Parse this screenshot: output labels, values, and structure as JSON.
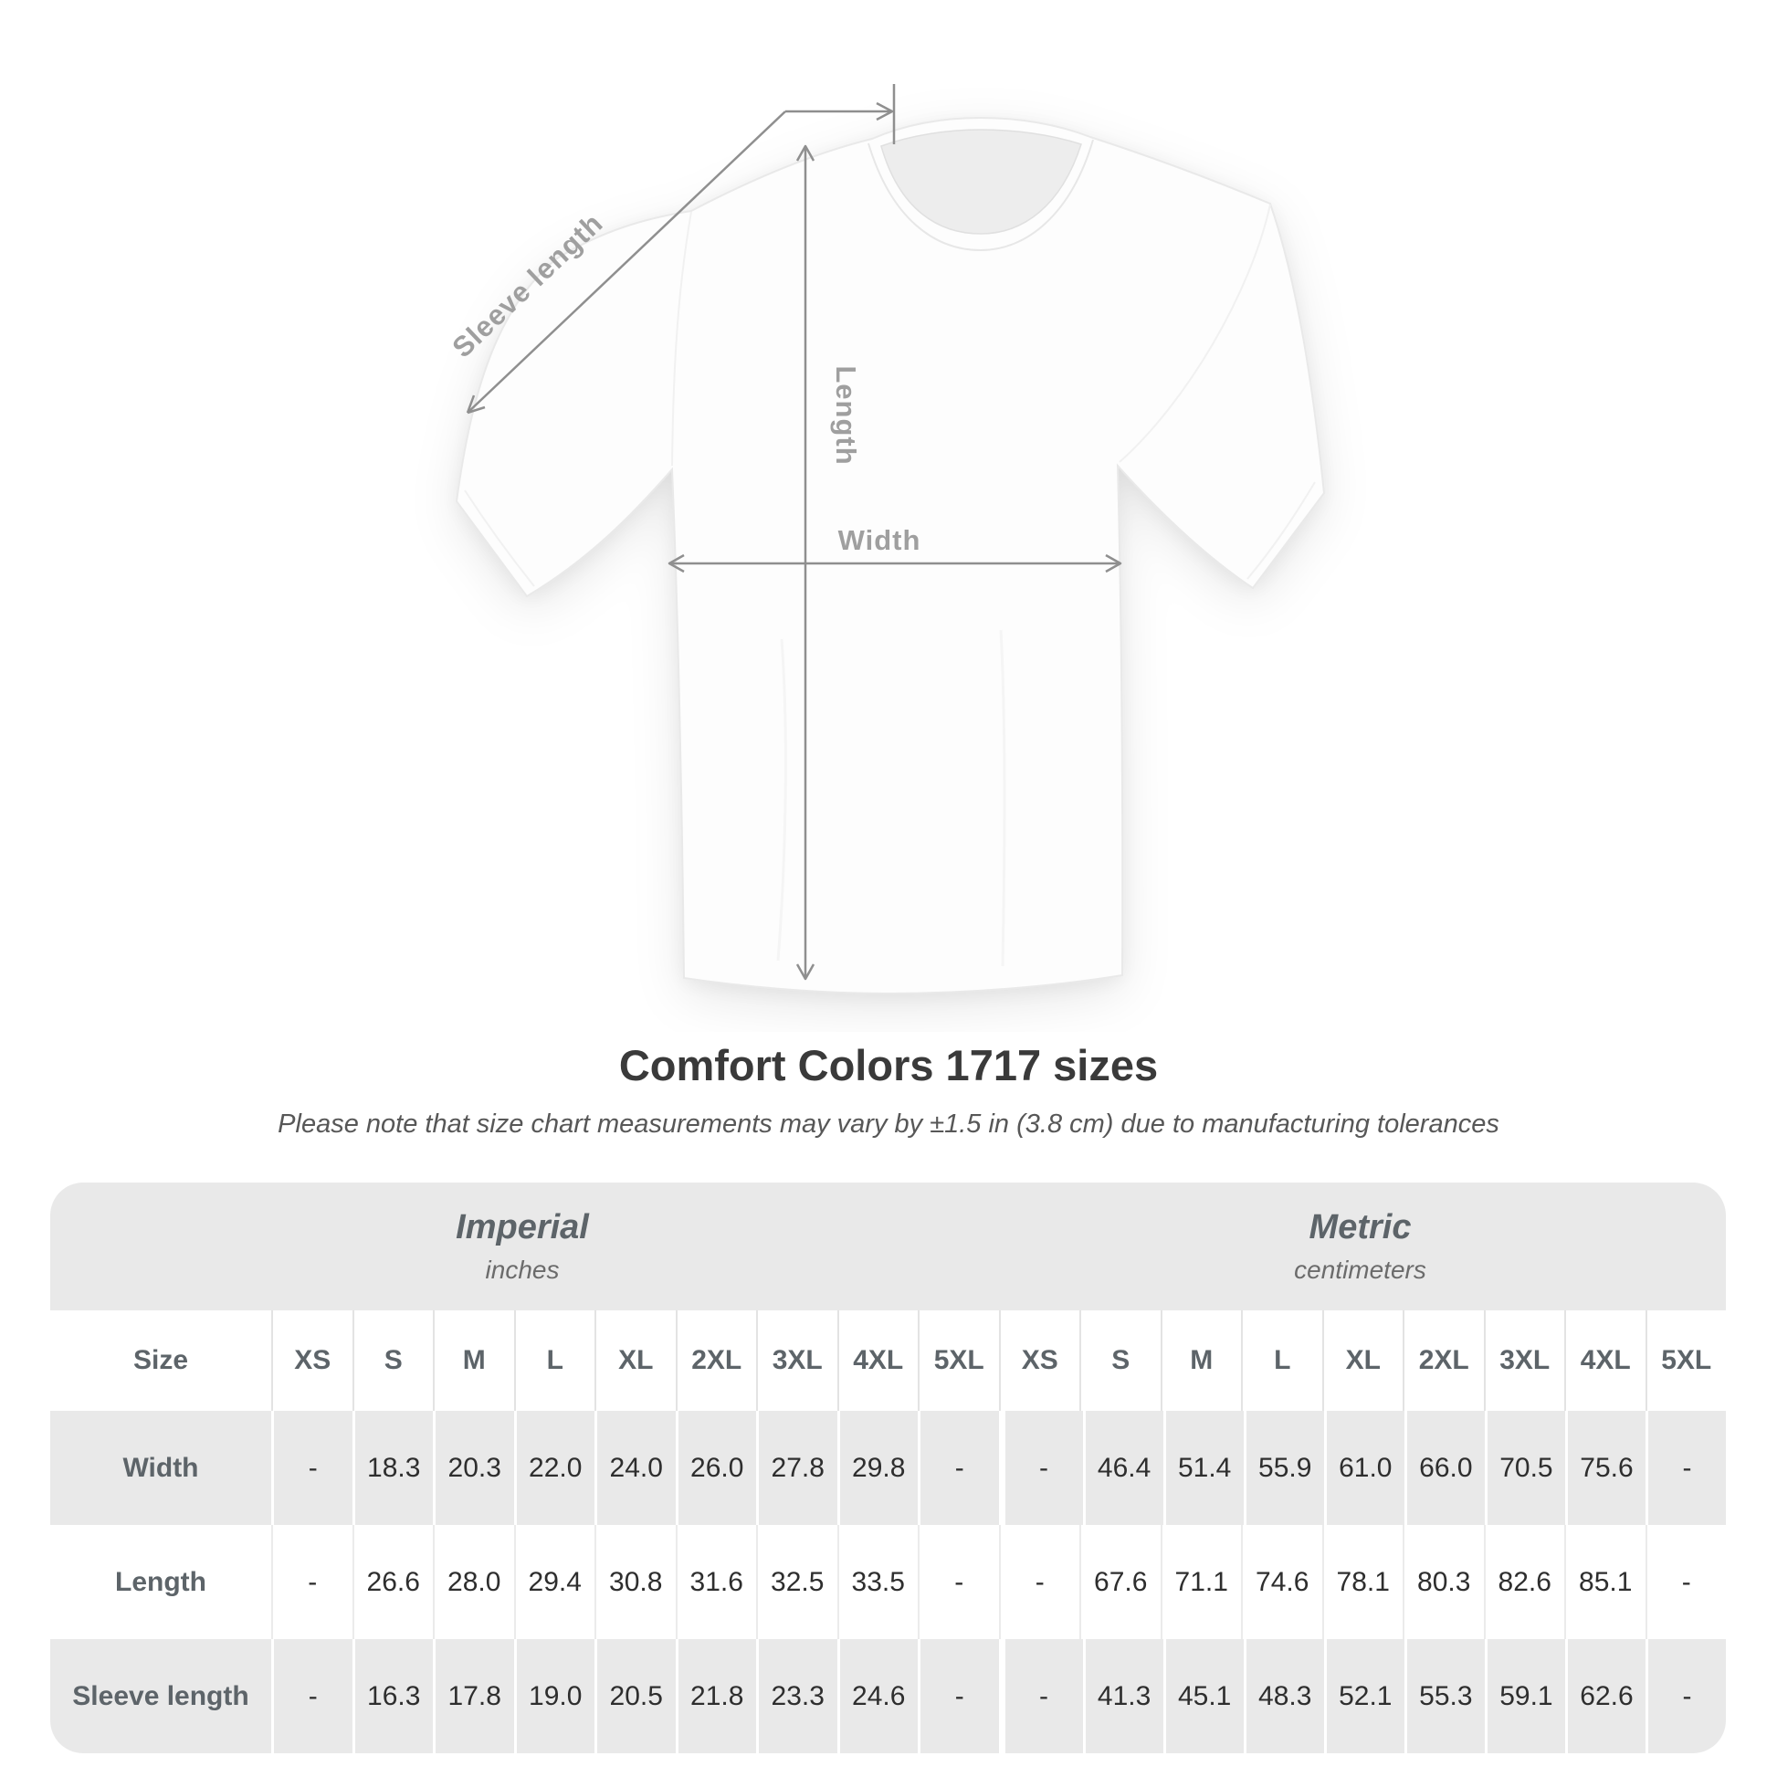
{
  "figure": {
    "sleeve_length_label": "Sleeve length",
    "length_label": "Length",
    "width_label": "Width"
  },
  "title": "Comfort Colors 1717 sizes",
  "subtitle": "Please note that size chart measurements may vary by ±1.5 in (3.8 cm) due to manufacturing tolerances",
  "chart_data": {
    "type": "table",
    "title": "Comfort Colors 1717 sizes",
    "corner_header": "Size",
    "sections": [
      {
        "label": "Imperial",
        "unit": "inches"
      },
      {
        "label": "Metric",
        "unit": "centimeters"
      }
    ],
    "sizes": [
      "XS",
      "S",
      "M",
      "L",
      "XL",
      "2XL",
      "3XL",
      "4XL",
      "5XL"
    ],
    "rows": [
      {
        "label": "Width",
        "imperial": [
          "-",
          "18.3",
          "20.3",
          "22.0",
          "24.0",
          "26.0",
          "27.8",
          "29.8",
          "-"
        ],
        "metric": [
          "-",
          "46.4",
          "51.4",
          "55.9",
          "61.0",
          "66.0",
          "70.5",
          "75.6",
          "-"
        ]
      },
      {
        "label": "Length",
        "imperial": [
          "-",
          "26.6",
          "28.0",
          "29.4",
          "30.8",
          "31.6",
          "32.5",
          "33.5",
          "-"
        ],
        "metric": [
          "-",
          "67.6",
          "71.1",
          "74.6",
          "78.1",
          "80.3",
          "82.6",
          "85.1",
          "-"
        ]
      },
      {
        "label": "Sleeve length",
        "imperial": [
          "-",
          "16.3",
          "17.8",
          "19.0",
          "20.5",
          "21.8",
          "23.3",
          "24.6",
          "-"
        ],
        "metric": [
          "-",
          "41.3",
          "45.1",
          "48.3",
          "52.1",
          "55.3",
          "59.1",
          "62.6",
          "-"
        ]
      }
    ]
  },
  "colors": {
    "table_bg": "#e9e9e9",
    "header_text": "#5d6469",
    "value_text": "#2e2e2e",
    "annotation_line": "#8f8f8f",
    "figure_label_text": "#9f9f9f",
    "title_text": "#3a3a3a"
  }
}
